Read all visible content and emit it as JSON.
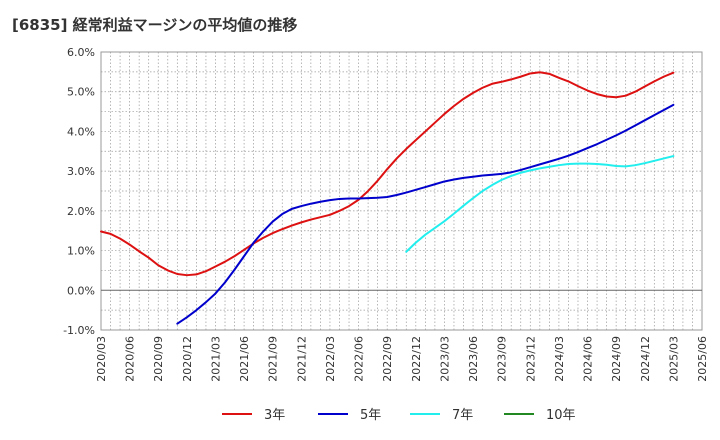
{
  "chart_data": {
    "type": "line",
    "title": "[6835]  経常利益マージンの平均値の推移",
    "xlabel": "",
    "ylabel": "",
    "ylim": [
      -1.0,
      6.0
    ],
    "y_ticks": [
      "6.0%",
      "5.0%",
      "4.0%",
      "3.0%",
      "2.0%",
      "1.0%",
      "0.0%",
      "-1.0%"
    ],
    "y_tick_values": [
      6,
      5,
      4,
      3,
      2,
      1,
      0,
      -1
    ],
    "x_ticks": [
      "2020/03",
      "2020/06",
      "2020/09",
      "2020/12",
      "2021/03",
      "2021/06",
      "2021/09",
      "2021/12",
      "2022/03",
      "2022/06",
      "2022/09",
      "2022/12",
      "2023/03",
      "2023/06",
      "2023/09",
      "2023/12",
      "2024/03",
      "2024/06",
      "2024/09",
      "2024/12",
      "2025/03",
      "2025/06"
    ],
    "grid": true,
    "legend_position": "bottom",
    "series": [
      {
        "name": "3年",
        "color": "#dd1111",
        "x": [
          "2020/03",
          "2020/04",
          "2020/05",
          "2020/06",
          "2020/07",
          "2020/08",
          "2020/09",
          "2020/10",
          "2020/11",
          "2020/12",
          "2021/01",
          "2021/02",
          "2021/03",
          "2021/04",
          "2021/05",
          "2021/06",
          "2021/07",
          "2021/08",
          "2021/09",
          "2021/10",
          "2021/11",
          "2021/12",
          "2022/01",
          "2022/02",
          "2022/03",
          "2022/04",
          "2022/05",
          "2022/06",
          "2022/07",
          "2022/08",
          "2022/09",
          "2022/10",
          "2022/11",
          "2022/12",
          "2023/01",
          "2023/02",
          "2023/03",
          "2023/04",
          "2023/05",
          "2023/06",
          "2023/07",
          "2023/08",
          "2023/09",
          "2023/10",
          "2023/11",
          "2023/12",
          "2024/01",
          "2024/02",
          "2024/03",
          "2024/04",
          "2024/05",
          "2024/06",
          "2024/07",
          "2024/08",
          "2024/09",
          "2024/10",
          "2024/11",
          "2024/12",
          "2025/01",
          "2025/02",
          "2025/03"
        ],
        "values": [
          1.48,
          1.42,
          1.3,
          1.15,
          0.98,
          0.82,
          0.63,
          0.5,
          0.41,
          0.38,
          0.4,
          0.48,
          0.6,
          0.72,
          0.86,
          1.02,
          1.18,
          1.32,
          1.44,
          1.54,
          1.63,
          1.71,
          1.78,
          1.84,
          1.9,
          2.0,
          2.12,
          2.28,
          2.5,
          2.76,
          3.05,
          3.32,
          3.56,
          3.78,
          4.0,
          4.22,
          4.44,
          4.64,
          4.82,
          4.97,
          5.1,
          5.2,
          5.25,
          5.31,
          5.38,
          5.46,
          5.49,
          5.45,
          5.35,
          5.26,
          5.14,
          5.03,
          4.94,
          4.88,
          4.86,
          4.9,
          5.0,
          5.13,
          5.26,
          5.38,
          5.48
        ]
      },
      {
        "name": "5年",
        "color": "#0000cc",
        "x": [
          "2020/11",
          "2020/12",
          "2021/01",
          "2021/02",
          "2021/03",
          "2021/04",
          "2021/05",
          "2021/06",
          "2021/07",
          "2021/08",
          "2021/09",
          "2021/10",
          "2021/11",
          "2021/12",
          "2022/01",
          "2022/02",
          "2022/03",
          "2022/04",
          "2022/05",
          "2022/06",
          "2022/07",
          "2022/08",
          "2022/09",
          "2022/10",
          "2022/11",
          "2022/12",
          "2023/01",
          "2023/02",
          "2023/03",
          "2023/04",
          "2023/05",
          "2023/06",
          "2023/07",
          "2023/08",
          "2023/09",
          "2023/10",
          "2023/11",
          "2023/12",
          "2024/01",
          "2024/02",
          "2024/03",
          "2024/04",
          "2024/05",
          "2024/06",
          "2024/07",
          "2024/08",
          "2024/09",
          "2024/10",
          "2024/11",
          "2024/12",
          "2025/01",
          "2025/02",
          "2025/03"
        ],
        "values": [
          -0.84,
          -0.68,
          -0.5,
          -0.3,
          -0.08,
          0.2,
          0.52,
          0.86,
          1.2,
          1.48,
          1.73,
          1.92,
          2.05,
          2.12,
          2.18,
          2.23,
          2.27,
          2.3,
          2.31,
          2.31,
          2.32,
          2.33,
          2.35,
          2.4,
          2.46,
          2.53,
          2.6,
          2.67,
          2.74,
          2.79,
          2.83,
          2.86,
          2.89,
          2.91,
          2.93,
          2.97,
          3.03,
          3.1,
          3.17,
          3.24,
          3.31,
          3.39,
          3.48,
          3.58,
          3.68,
          3.79,
          3.9,
          4.02,
          4.15,
          4.28,
          4.41,
          4.54,
          4.67
        ]
      },
      {
        "name": "7年",
        "color": "#22eeee",
        "x": [
          "2022/11",
          "2022/12",
          "2023/01",
          "2023/02",
          "2023/03",
          "2023/04",
          "2023/05",
          "2023/06",
          "2023/07",
          "2023/08",
          "2023/09",
          "2023/10",
          "2023/11",
          "2023/12",
          "2024/01",
          "2024/02",
          "2024/03",
          "2024/04",
          "2024/05",
          "2024/06",
          "2024/07",
          "2024/08",
          "2024/09",
          "2024/10",
          "2024/11",
          "2024/12",
          "2025/01",
          "2025/02",
          "2025/03"
        ],
        "values": [
          0.97,
          1.2,
          1.4,
          1.57,
          1.74,
          1.93,
          2.13,
          2.32,
          2.5,
          2.65,
          2.78,
          2.88,
          2.96,
          3.02,
          3.07,
          3.11,
          3.15,
          3.18,
          3.19,
          3.19,
          3.18,
          3.16,
          3.13,
          3.12,
          3.15,
          3.2,
          3.26,
          3.32,
          3.38
        ]
      },
      {
        "name": "10年",
        "color": "#228822",
        "x": [],
        "values": []
      }
    ]
  }
}
